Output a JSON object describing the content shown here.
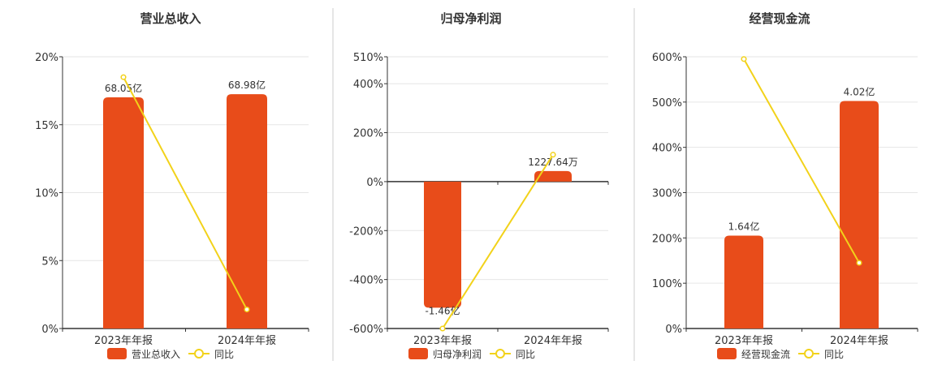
{
  "colors": {
    "bar": "#e84c1a",
    "line": "#f2d21a",
    "grid": "#e6e6e6",
    "axis": "#333333",
    "divider": "#cccccc"
  },
  "chart_data": [
    {
      "type": "bar",
      "title": "营业总收入",
      "categories": [
        "2023年年报",
        "2024年年报"
      ],
      "bar_series": {
        "name": "营业总收入",
        "values": [
          68.05,
          68.98
        ],
        "labels": [
          "68.05亿",
          "68.98亿"
        ],
        "unit": "亿"
      },
      "line_series": {
        "name": "同比",
        "values": [
          18.5,
          1.4
        ]
      },
      "yaxis": {
        "ticks": [
          "0%",
          "5%",
          "10%",
          "15%",
          "20%"
        ],
        "range": [
          0,
          20
        ]
      },
      "bar_axis_range": [
        0,
        80
      ],
      "grid": true,
      "legend": "bottom-center"
    },
    {
      "type": "bar",
      "title": "归母净利润",
      "categories": [
        "2023年年报",
        "2024年年报"
      ],
      "bar_series": {
        "name": "归母净利润",
        "values": [
          -14600,
          1227.64
        ],
        "labels": [
          "-1.46亿",
          "1227.64万"
        ],
        "unit": "万"
      },
      "line_series": {
        "name": "同比",
        "values": [
          -600,
          110
        ]
      },
      "yaxis": {
        "ticks": [
          "-600%",
          "-400%",
          "-200%",
          "0%",
          "200%",
          "400%",
          "510%"
        ],
        "range": [
          -600,
          510
        ]
      },
      "bar_axis_range": [
        -17000,
        14450
      ],
      "grid": true,
      "legend": "bottom-center"
    },
    {
      "type": "bar",
      "title": "经营现金流",
      "categories": [
        "2023年年报",
        "2024年年报"
      ],
      "bar_series": {
        "name": "经营现金流",
        "values": [
          1.64,
          4.02
        ],
        "labels": [
          "1.64亿",
          "4.02亿"
        ],
        "unit": "亿"
      },
      "line_series": {
        "name": "同比",
        "values": [
          595,
          145
        ]
      },
      "yaxis": {
        "ticks": [
          "0%",
          "100%",
          "200%",
          "300%",
          "400%",
          "500%",
          "600%"
        ],
        "range": [
          0,
          600
        ]
      },
      "bar_axis_range": [
        0,
        4.8
      ],
      "grid": true,
      "legend": "bottom-center"
    }
  ]
}
